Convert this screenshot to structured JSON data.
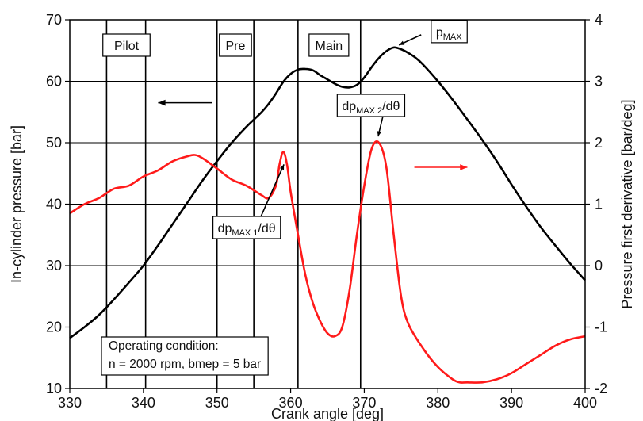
{
  "chart_data": {
    "type": "line",
    "title": "",
    "xlabel": "Crank angle [deg]",
    "ylabel_left": "In-cylinder pressure [bar]",
    "ylabel_right": "Pressure first derivative [bar/deg]",
    "xlim": [
      330,
      400
    ],
    "ylim_left": [
      10,
      70
    ],
    "ylim_right": [
      -2,
      4
    ],
    "grid": "horizontal",
    "x_ticks": [
      "330",
      "340",
      "350",
      "360",
      "370",
      "380",
      "390",
      "400"
    ],
    "y_left_ticks": [
      "10",
      "20",
      "30",
      "40",
      "50",
      "60",
      "70"
    ],
    "y_right_ticks": [
      "-2",
      "-1",
      "0",
      "1",
      "2",
      "3",
      "4"
    ],
    "injection_markers": [
      335,
      340.3,
      350,
      355,
      361,
      369.5
    ],
    "injection_labels": [
      {
        "text": "Pilot",
        "x": 337.7
      },
      {
        "text": "Pre",
        "x": 352.5
      },
      {
        "text": "Main",
        "x": 365.2
      }
    ],
    "series": [
      {
        "axis": "left",
        "color": "#000000",
        "x": [
          330,
          332,
          334,
          336,
          338,
          340,
          342,
          344,
          346,
          348,
          350,
          352,
          354,
          356,
          357,
          358,
          359,
          360,
          361,
          362,
          363,
          364,
          365,
          366,
          367,
          368,
          369,
          370,
          371,
          372,
          373,
          374,
          375,
          376,
          377,
          378,
          380,
          382,
          384,
          386,
          388,
          390,
          392,
          394,
          396,
          398,
          400
        ],
        "y": [
          18.2,
          20.0,
          22.0,
          24.5,
          27.2,
          30.0,
          33.3,
          36.8,
          40.3,
          43.8,
          47.0,
          50.0,
          52.6,
          54.9,
          56.3,
          58.0,
          59.9,
          61.2,
          61.9,
          62.0,
          61.8,
          61.0,
          60.3,
          59.6,
          59.1,
          59.0,
          59.4,
          60.6,
          62.3,
          63.8,
          64.9,
          65.5,
          65.2,
          64.6,
          63.8,
          62.7,
          60.0,
          57.0,
          53.8,
          50.5,
          47.0,
          43.2,
          39.6,
          36.2,
          33.2,
          30.3,
          27.6
        ]
      },
      {
        "axis": "right",
        "color": "#ff1a1a",
        "x": [
          330,
          332,
          334,
          336,
          338,
          340,
          342,
          344,
          346,
          347,
          348,
          350,
          352,
          354,
          356,
          357,
          358,
          358.5,
          359,
          359.5,
          360,
          361,
          362,
          363,
          364,
          365,
          366,
          367,
          368,
          369,
          370,
          371,
          372,
          373,
          374,
          375,
          376,
          378,
          380,
          382,
          383,
          384,
          386,
          388,
          390,
          392,
          394,
          396,
          398,
          400
        ],
        "y": [
          0.85,
          1.0,
          1.1,
          1.25,
          1.3,
          1.45,
          1.55,
          1.7,
          1.78,
          1.8,
          1.75,
          1.58,
          1.4,
          1.3,
          1.15,
          1.1,
          1.3,
          1.65,
          1.85,
          1.65,
          1.2,
          0.5,
          -0.15,
          -0.6,
          -0.9,
          -1.1,
          -1.15,
          -1.0,
          -0.4,
          0.5,
          1.3,
          1.9,
          2.0,
          1.6,
          0.5,
          -0.5,
          -0.95,
          -1.35,
          -1.65,
          -1.85,
          -1.9,
          -1.9,
          -1.9,
          -1.85,
          -1.75,
          -1.6,
          -1.45,
          -1.3,
          -1.2,
          -1.15
        ]
      }
    ],
    "annotations": {
      "pmax": {
        "main": "p",
        "sub": "MAX",
        "x": 374.5,
        "y_left": 65.5
      },
      "dp1": {
        "main": "dp",
        "sub": "MAX 1",
        "tail": "/dθ",
        "x": 359.2,
        "y_right": 1.75
      },
      "dp2": {
        "main": "dp",
        "sub": "MAX 2",
        "tail": "/dθ",
        "x": 372.2,
        "y_right": 2.05
      },
      "operating_condition": {
        "line1": "Operating condition:",
        "line2": "n = 2000 rpm, bmep = 5 bar"
      }
    }
  }
}
